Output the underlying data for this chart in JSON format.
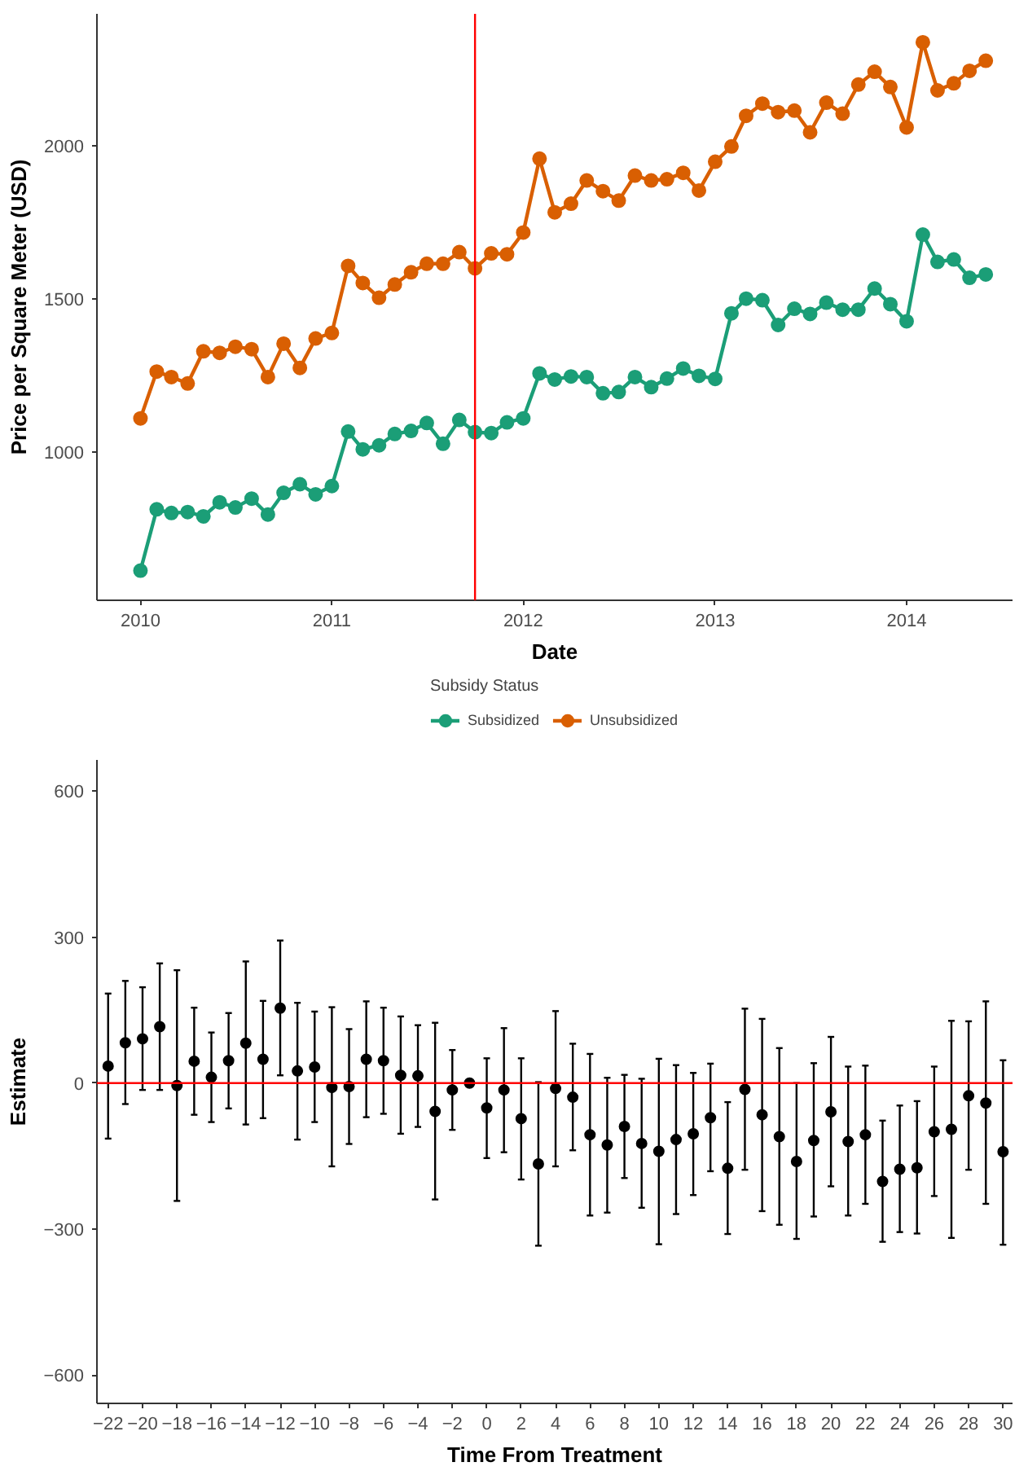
{
  "chart_data": [
    {
      "type": "line",
      "xlabel": "Date",
      "ylabel": "Price per Square Meter (USD)",
      "legend_title": "Subsidy Status",
      "legend": "bottom",
      "grid": false,
      "marker": "circle",
      "line_style": "solid",
      "x": [
        "2010-01",
        "2010-02",
        "2010-03",
        "2010-04",
        "2010-05",
        "2010-06",
        "2010-07",
        "2010-08",
        "2010-09",
        "2010-10",
        "2010-11",
        "2010-12",
        "2011-01",
        "2011-02",
        "2011-03",
        "2011-04",
        "2011-05",
        "2011-06",
        "2011-07",
        "2011-08",
        "2011-09",
        "2011-10",
        "2011-11",
        "2011-12",
        "2012-01",
        "2012-02",
        "2012-03",
        "2012-04",
        "2012-05",
        "2012-06",
        "2012-07",
        "2012-08",
        "2012-09",
        "2012-10",
        "2012-11",
        "2012-12",
        "2013-01",
        "2013-02",
        "2013-03",
        "2013-04",
        "2013-05",
        "2013-06",
        "2013-07",
        "2013-08",
        "2013-09",
        "2013-10",
        "2013-11",
        "2013-12",
        "2014-01",
        "2014-02",
        "2014-03",
        "2014-04",
        "2014-05",
        "2014-06"
      ],
      "xlim": [
        "2009-10-10",
        "2014-07-22"
      ],
      "xticks": [
        "2010",
        "2011",
        "2012",
        "2013",
        "2014"
      ],
      "ylim": [
        515,
        2430
      ],
      "yticks": [
        1000,
        1500,
        2000
      ],
      "series": [
        {
          "name": "Subsidized",
          "color": "#1b9e77",
          "values": [
            612,
            812,
            800,
            803,
            789,
            835,
            818,
            847,
            795,
            866,
            894,
            861,
            888,
            1066,
            1008,
            1021,
            1058,
            1068,
            1094,
            1026,
            1104,
            1064,
            1061,
            1096,
            1109,
            1256,
            1236,
            1246,
            1244,
            1191,
            1195,
            1244,
            1211,
            1239,
            1272,
            1248,
            1238,
            1452,
            1500,
            1495,
            1414,
            1467,
            1450,
            1487,
            1464,
            1464,
            1533,
            1482,
            1426,
            1709,
            1620,
            1628,
            1568,
            1579
          ]
        },
        {
          "name": "Unsubsidized",
          "color": "#d95f02",
          "values": [
            1109,
            1262,
            1244,
            1223,
            1328,
            1323,
            1343,
            1335,
            1244,
            1353,
            1274,
            1370,
            1388,
            1607,
            1551,
            1503,
            1546,
            1586,
            1614,
            1614,
            1652,
            1599,
            1648,
            1645,
            1716,
            1957,
            1782,
            1810,
            1886,
            1851,
            1820,
            1902,
            1886,
            1890,
            1911,
            1853,
            1947,
            1997,
            2097,
            2137,
            2109,
            2114,
            2043,
            2140,
            2104,
            2199,
            2241,
            2191,
            2059,
            2337,
            2180,
            2203,
            2244,
            2277
          ]
        }
      ],
      "ref_lines": [
        {
          "axis": "x",
          "value": "2011-10",
          "color": "#ff0000"
        }
      ]
    },
    {
      "type": "scatter",
      "xlabel": "Time From Treatment",
      "ylabel": "Estimate",
      "grid": false,
      "marker": "circle",
      "x": [
        -22,
        -21,
        -20,
        -19,
        -18,
        -17,
        -16,
        -15,
        -14,
        -13,
        -12,
        -11,
        -10,
        -9,
        -8,
        -7,
        -6,
        -5,
        -4,
        -3,
        -2,
        -1,
        0,
        1,
        2,
        3,
        4,
        5,
        6,
        7,
        8,
        9,
        10,
        11,
        12,
        13,
        14,
        15,
        16,
        17,
        18,
        19,
        20,
        21,
        22,
        23,
        24,
        25,
        26,
        27,
        28,
        29,
        30
      ],
      "xlim": [
        -22.65,
        30.55
      ],
      "xticks": [
        {
          "value": -22,
          "label": "−22"
        },
        {
          "value": -20,
          "label": "−20"
        },
        {
          "value": -18,
          "label": "−18"
        },
        {
          "value": -16,
          "label": "−16"
        },
        {
          "value": -14,
          "label": "−14"
        },
        {
          "value": -12,
          "label": "−12"
        },
        {
          "value": -10,
          "label": "−10"
        },
        {
          "value": -8,
          "label": "−8"
        },
        {
          "value": -6,
          "label": "−6"
        },
        {
          "value": -4,
          "label": "−4"
        },
        {
          "value": -2,
          "label": "−2"
        },
        0,
        2,
        4,
        6,
        8,
        10,
        12,
        14,
        16,
        18,
        20,
        22,
        24,
        26,
        28,
        30
      ],
      "ylim": [
        -658,
        664
      ],
      "yticks": [
        {
          "value": -600,
          "label": "−600"
        },
        {
          "value": -300,
          "label": "−300"
        },
        0,
        300,
        600
      ],
      "series": [
        {
          "color": "#000000",
          "values": [
            35,
            83,
            91,
            116,
            -5,
            45,
            12,
            46,
            82,
            49,
            154,
            25,
            33,
            -9,
            -7,
            49,
            46,
            16,
            15,
            -58,
            -14,
            0,
            -51,
            -14,
            -73,
            -166,
            -11,
            -29,
            -106,
            -127,
            -89,
            -124,
            -140,
            -116,
            -104,
            -71,
            -175,
            -13,
            -65,
            -110,
            -161,
            -118,
            -59,
            -120,
            -106,
            -202,
            -177,
            -174,
            -100,
            -95,
            -26,
            -41,
            -141
          ],
          "errors": [
            [
              -114,
              184
            ],
            [
              -43,
              210
            ],
            [
              -14,
              197
            ],
            [
              -14,
              246
            ],
            [
              -242,
              232
            ],
            [
              -65,
              155
            ],
            [
              -80,
              104
            ],
            [
              -52,
              144
            ],
            [
              -85,
              250
            ],
            [
              -72,
              169
            ],
            [
              16,
              293
            ],
            [
              -116,
              165
            ],
            [
              -80,
              147
            ],
            [
              -171,
              156
            ],
            [
              -125,
              111
            ],
            [
              -70,
              168
            ],
            [
              -63,
              155
            ],
            [
              -104,
              137
            ],
            [
              -90,
              119
            ],
            [
              -239,
              124
            ],
            [
              -96,
              68
            ],
            null,
            [
              -154,
              51
            ],
            [
              -142,
              113
            ],
            [
              -198,
              51
            ],
            [
              -334,
              2
            ],
            [
              -171,
              148
            ],
            [
              -138,
              81
            ],
            [
              -272,
              60
            ],
            [
              -266,
              11
            ],
            [
              -195,
              17
            ],
            [
              -256,
              9
            ],
            [
              -331,
              50
            ],
            [
              -269,
              37
            ],
            [
              -230,
              21
            ],
            [
              -181,
              40
            ],
            [
              -310,
              -39
            ],
            [
              -178,
              153
            ],
            [
              -263,
              132
            ],
            [
              -291,
              72
            ],
            [
              -320,
              0
            ],
            [
              -274,
              41
            ],
            [
              -212,
              95
            ],
            [
              -272,
              34
            ],
            [
              -248,
              36
            ],
            [
              -326,
              -77
            ],
            [
              -306,
              -46
            ],
            [
              -309,
              -37
            ],
            [
              -232,
              34
            ],
            [
              -318,
              128
            ],
            [
              -178,
              127
            ],
            [
              -248,
              168
            ],
            [
              -332,
              47
            ]
          ]
        }
      ],
      "ref_lines": [
        {
          "axis": "y",
          "value": 0,
          "color": "#ff0000"
        }
      ]
    }
  ]
}
